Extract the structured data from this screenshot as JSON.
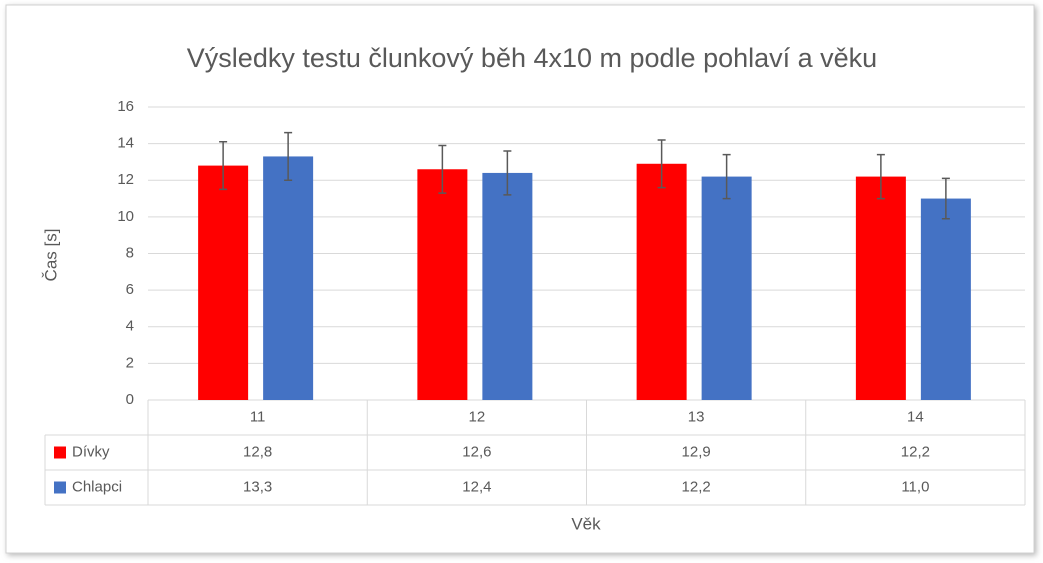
{
  "chart_data": {
    "type": "bar",
    "title": "Výsledky testu člunkový běh 4x10 m podle pohlaví a věku",
    "x_label": "Věk",
    "y_label": "Čas [s]",
    "categories": [
      "11",
      "12",
      "13",
      "14"
    ],
    "series": [
      {
        "name": "Dívky",
        "color": "#ff0000",
        "values": [
          12.8,
          12.6,
          12.9,
          12.2
        ],
        "value_labels": [
          "12,8",
          "12,6",
          "12,9",
          "12,2"
        ],
        "errors": [
          1.3,
          1.3,
          1.3,
          1.2
        ]
      },
      {
        "name": "Chlapci",
        "color": "#4472c4",
        "values": [
          13.3,
          12.4,
          12.2,
          11.0
        ],
        "value_labels": [
          "13,3",
          "12,4",
          "12,2",
          "11,0"
        ],
        "errors": [
          1.3,
          1.2,
          1.2,
          1.1
        ]
      }
    ],
    "ylim": [
      0,
      16
    ],
    "yticks": [
      0,
      2,
      4,
      6,
      8,
      10,
      12,
      14,
      16
    ],
    "grid": true
  }
}
